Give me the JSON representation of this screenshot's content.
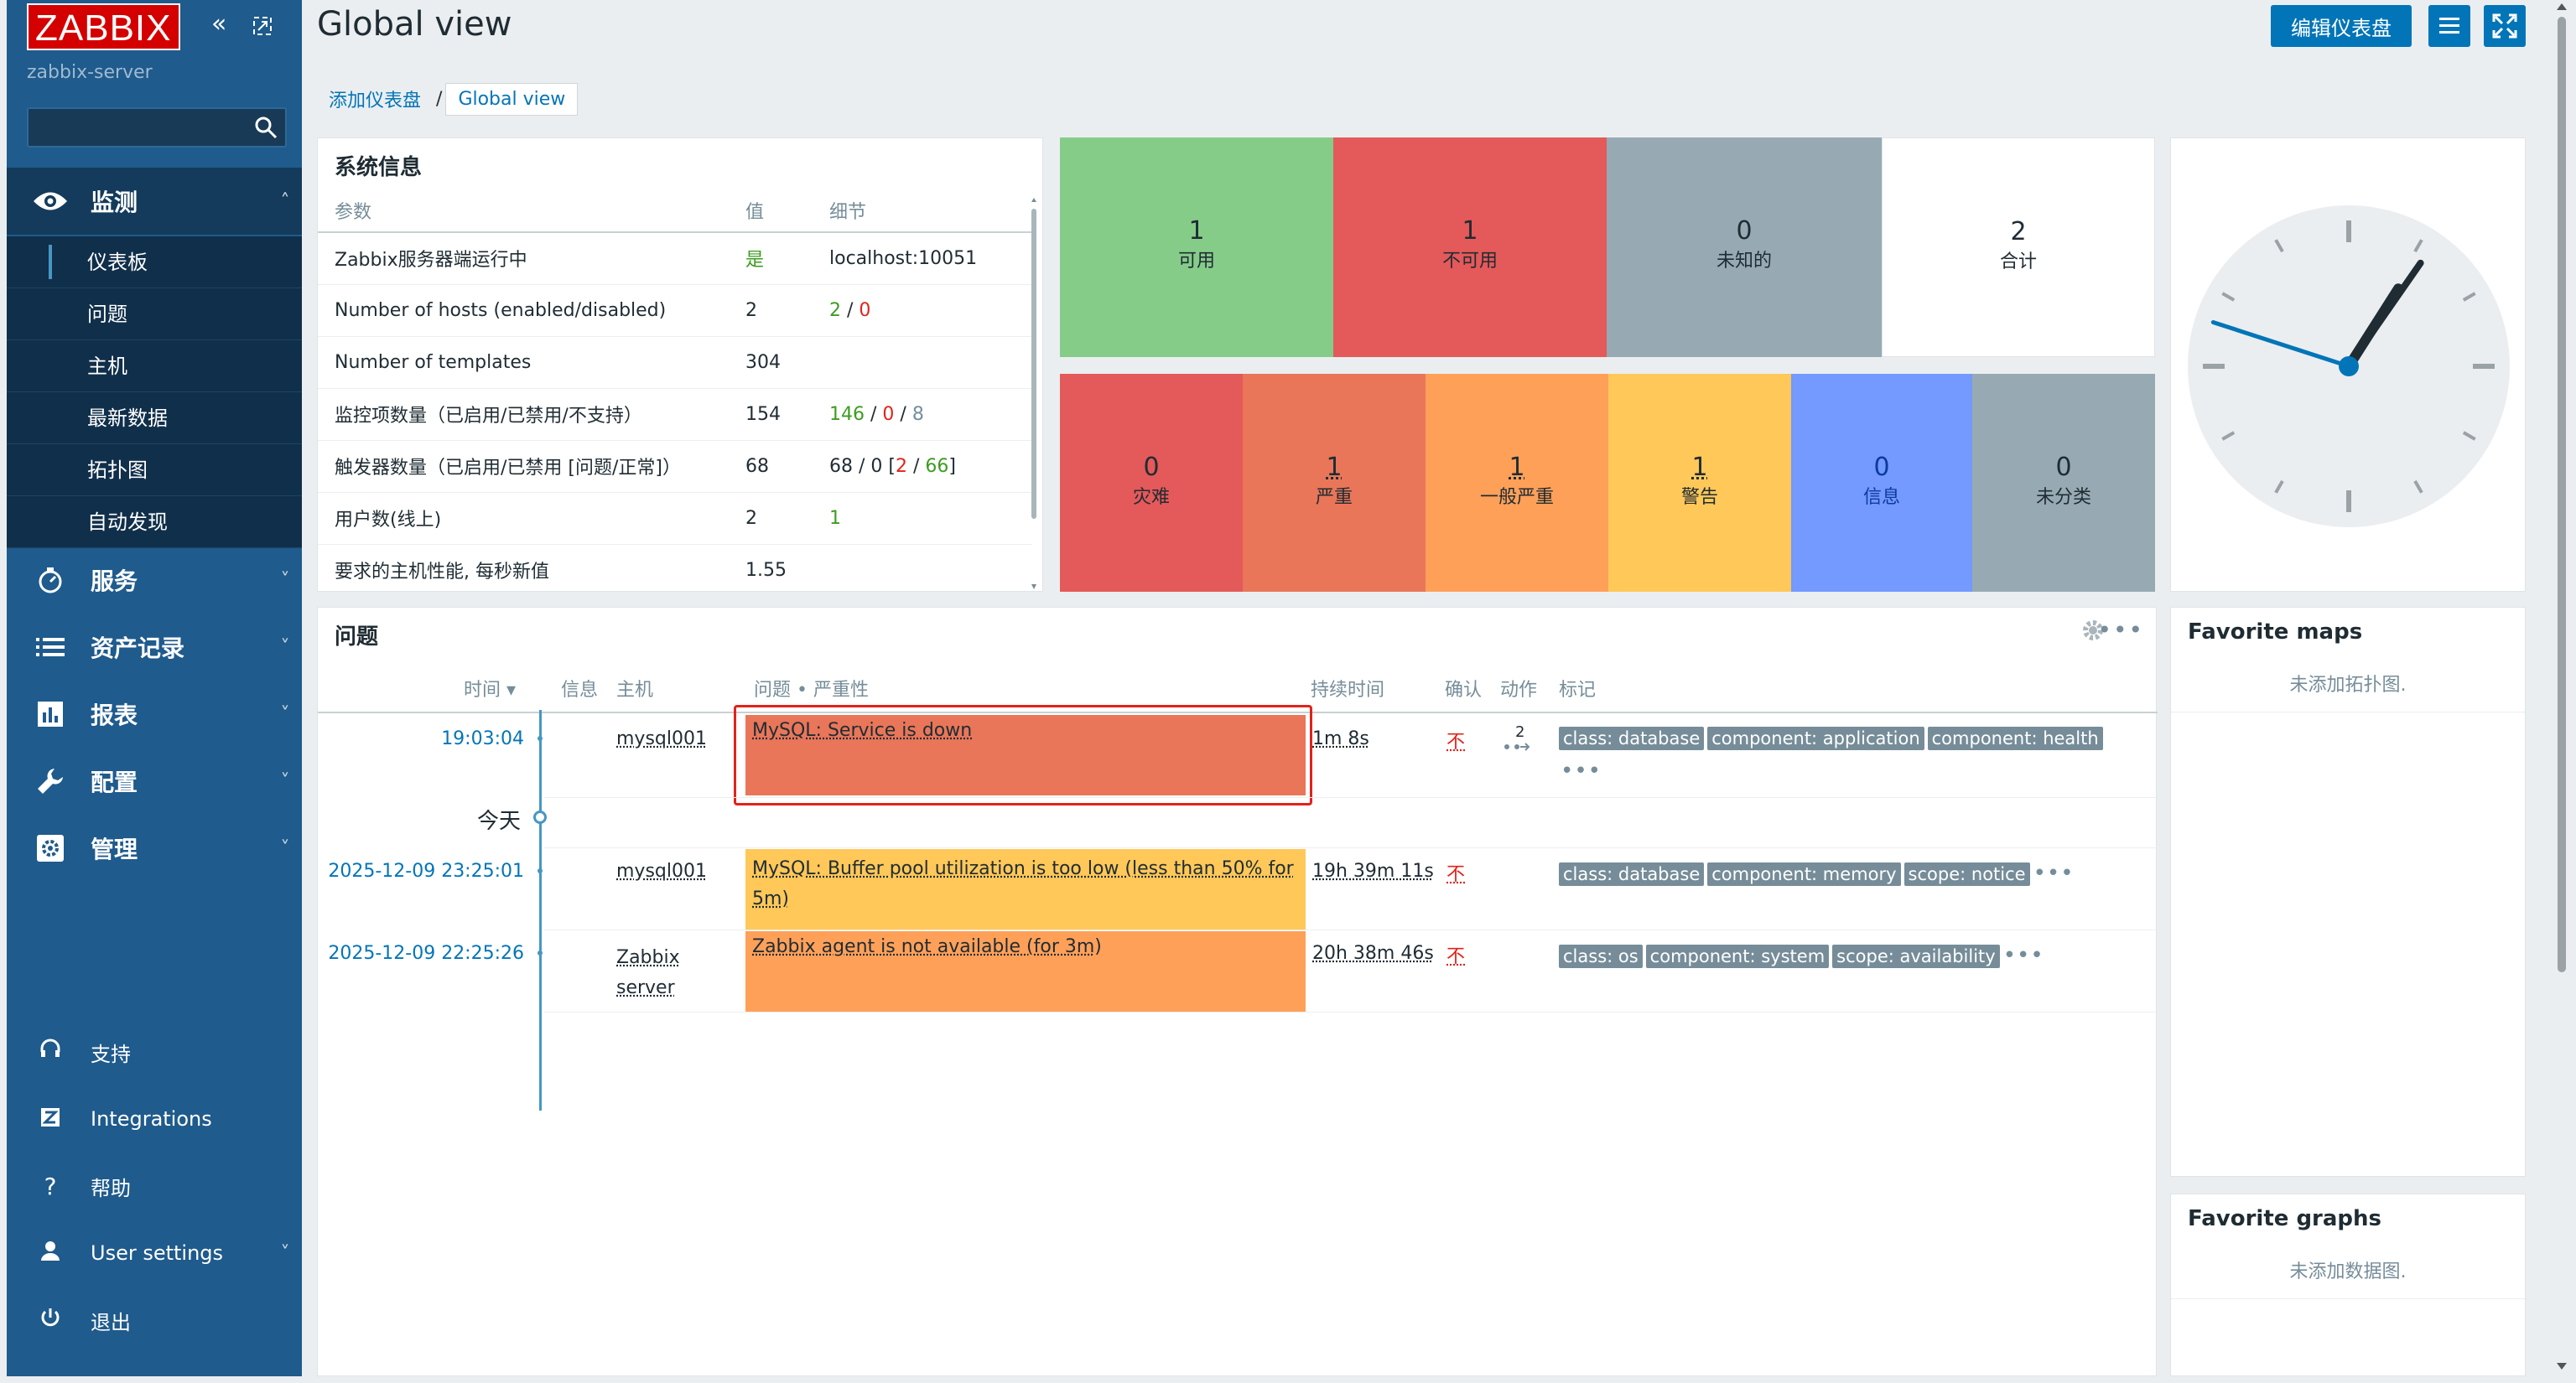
{
  "sidebar": {
    "logo": "ZABBIX",
    "server_name": "zabbix-server",
    "search_value": "",
    "monitor": {
      "label": "监测",
      "items": [
        {
          "label": "仪表板",
          "active": true
        },
        {
          "label": "问题"
        },
        {
          "label": "主机"
        },
        {
          "label": "最新数据"
        },
        {
          "label": "拓扑图"
        },
        {
          "label": "自动发现"
        }
      ]
    },
    "sections": [
      {
        "label": "服务",
        "icon": "services-icon"
      },
      {
        "label": "资产记录",
        "icon": "inventory-icon"
      },
      {
        "label": "报表",
        "icon": "reports-icon"
      },
      {
        "label": "配置",
        "icon": "wrench-icon"
      },
      {
        "label": "管理",
        "icon": "gear-icon"
      }
    ],
    "bottom": [
      {
        "label": "支持",
        "icon": "headset-icon"
      },
      {
        "label": "Integrations",
        "icon": "integrations-icon"
      },
      {
        "label": "帮助",
        "icon": "help-icon"
      },
      {
        "label": "User settings",
        "icon": "user-icon"
      },
      {
        "label": "退出",
        "icon": "power-icon"
      }
    ]
  },
  "header": {
    "title": "Global view",
    "edit_button": "编辑仪表盘",
    "breadcrumb": {
      "parent": "添加仪表盘",
      "separator": "/",
      "current": "Global view"
    }
  },
  "system_info": {
    "title": "系统信息",
    "columns": [
      "参数",
      "值",
      "细节"
    ],
    "rows": [
      {
        "param": "Zabbix服务器端运行中",
        "value": "是",
        "details": "localhost:10051"
      },
      {
        "param": "Number of hosts (enabled/disabled)",
        "value": "2",
        "d1": "2",
        "d2": "0"
      },
      {
        "param": "Number of templates",
        "value": "304",
        "details": ""
      },
      {
        "param": "监控项数量（已启用/已禁用/不支持）",
        "value": "154",
        "d1": "146",
        "d2": "0",
        "d3": "8"
      },
      {
        "param": "触发器数量（已启用/已禁用 [问题/正常]）",
        "value": "68",
        "d_prefix": "68 / 0 [",
        "d1": "2",
        "d2": "66",
        "d_suffix": "]"
      },
      {
        "param": "用户数(线上)",
        "value": "2",
        "details": "1"
      },
      {
        "param": "要求的主机性能, 每秒新值",
        "value": "1.55",
        "details": ""
      }
    ]
  },
  "host_availability": [
    {
      "count": "1",
      "label": "可用",
      "color": "#86cc89"
    },
    {
      "count": "1",
      "label": "不可用",
      "color": "#e45959"
    },
    {
      "count": "0",
      "label": "未知的",
      "color": "#97aab3"
    },
    {
      "count": "2",
      "label": "合计",
      "color": "#ffffff"
    }
  ],
  "problems_by_severity": [
    {
      "count": "0",
      "label": "灾难",
      "color": "#e45959"
    },
    {
      "count": "1",
      "label": "严重",
      "color": "#e97659"
    },
    {
      "count": "1",
      "label": "一般严重",
      "color": "#ffa059"
    },
    {
      "count": "1",
      "label": "警告",
      "color": "#ffc859"
    },
    {
      "count": "0",
      "label": "信息",
      "color": "#7499ff"
    },
    {
      "count": "0",
      "label": "未分类",
      "color": "#97aab3"
    }
  ],
  "clock": {
    "hour": 1,
    "minute": 5,
    "second": 48
  },
  "problems": {
    "title": "问题",
    "columns": {
      "time": "时间 ▾",
      "info": "信息",
      "host": "主机",
      "problem": "问题 • 严重性",
      "duration": "持续时间",
      "ack": "确认",
      "actions": "动作",
      "tags": "标记"
    },
    "today_label": "今天",
    "rows": [
      {
        "time": "19:03:04",
        "host": "mysql001",
        "problem": "MySQL: Service is down",
        "severity_color": "#e97659",
        "duration": "1m 8s",
        "ack": "不",
        "actions_count": "2",
        "tags": [
          "class: database",
          "component: application",
          "component: health"
        ],
        "more": "•••"
      },
      {
        "time": "2025-12-09 23:25:01",
        "host": "mysql001",
        "problem": "MySQL: Buffer pool utilization is too low (less than 50% for 5m)",
        "severity_color": "#ffc859",
        "duration": "19h 39m 11s",
        "ack": "不",
        "tags": [
          "class: database",
          "component: memory",
          "scope: notice"
        ],
        "more": "•••"
      },
      {
        "time": "2025-12-09 22:25:26",
        "host_line1": "Zabbix",
        "host_line2": "server",
        "problem": "Zabbix agent is not available (for 3m)",
        "severity_color": "#ffa059",
        "duration": "20h 38m 46s",
        "ack": "不",
        "tags": [
          "class: os",
          "component: system",
          "scope: availability"
        ],
        "more": "•••"
      }
    ]
  },
  "favorites": {
    "maps_title": "Favorite maps",
    "maps_empty": "未添加拓扑图.",
    "graphs_title": "Favorite graphs",
    "graphs_empty": "未添加数据图."
  },
  "colors": {
    "sidebar": "#1f5b8c",
    "accent": "#0275b8",
    "highlight_border": "#e2231a"
  }
}
